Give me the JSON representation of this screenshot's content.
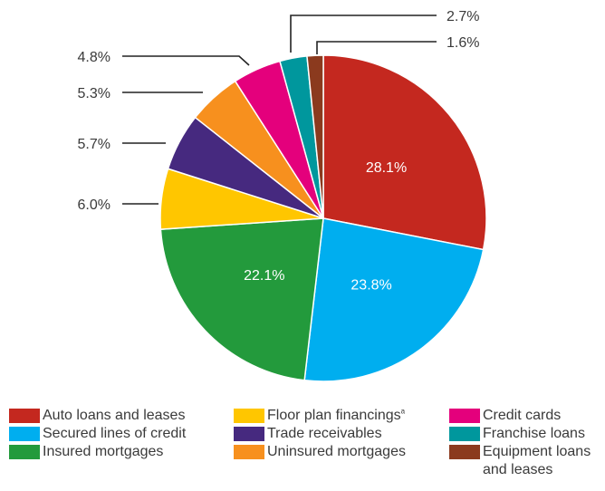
{
  "chart_data": {
    "type": "pie",
    "start_angle_deg": 0,
    "direction": "clockwise",
    "slices": [
      {
        "label": "Auto loans and leases",
        "value": 28.1,
        "value_label": "28.1%",
        "color": "#c4281f",
        "label_inside": true
      },
      {
        "label": "Secured lines of credit",
        "value": 23.8,
        "value_label": "23.8%",
        "color": "#00aeef",
        "label_inside": true
      },
      {
        "label": "Insured mortgages",
        "value": 22.1,
        "value_label": "22.1%",
        "color": "#239a3c",
        "label_inside": true
      },
      {
        "label": "Floor plan financings",
        "footnote": "a",
        "value": 6.0,
        "value_label": "6.0%",
        "color": "#ffc600",
        "label_inside": false
      },
      {
        "label": "Trade receivables",
        "value": 5.7,
        "value_label": "5.7%",
        "color": "#46297f",
        "label_inside": false
      },
      {
        "label": "Uninsured mortgages",
        "value": 5.3,
        "value_label": "5.3%",
        "color": "#f7901e",
        "label_inside": false
      },
      {
        "label": "Credit cards",
        "value": 4.8,
        "value_label": "4.8%",
        "color": "#e4007c",
        "label_inside": false
      },
      {
        "label": "Franchise loans",
        "value": 2.7,
        "value_label": "2.7%",
        "color": "#00979d",
        "label_inside": false
      },
      {
        "label": "Equipment loans and leases",
        "value": 1.6,
        "value_label": "1.6%",
        "color": "#8b3a1e",
        "label_inside": false
      }
    ]
  },
  "legend": {
    "items": [
      {
        "label": "Auto loans and leases",
        "color": "#c4281f"
      },
      {
        "label": "Secured lines of credit",
        "color": "#00aeef"
      },
      {
        "label": "Insured mortgages",
        "color": "#239a3c"
      },
      {
        "label": "Floor plan financings",
        "footnote": "a",
        "color": "#ffc600"
      },
      {
        "label": "Trade receivables",
        "color": "#46297f"
      },
      {
        "label": "Uninsured mortgages",
        "color": "#f7901e"
      },
      {
        "label": "Credit cards",
        "color": "#e4007c"
      },
      {
        "label": "Franchise loans",
        "color": "#00979d"
      },
      {
        "label": "Equipment loans\nand leases",
        "color": "#8b3a1e"
      }
    ]
  }
}
